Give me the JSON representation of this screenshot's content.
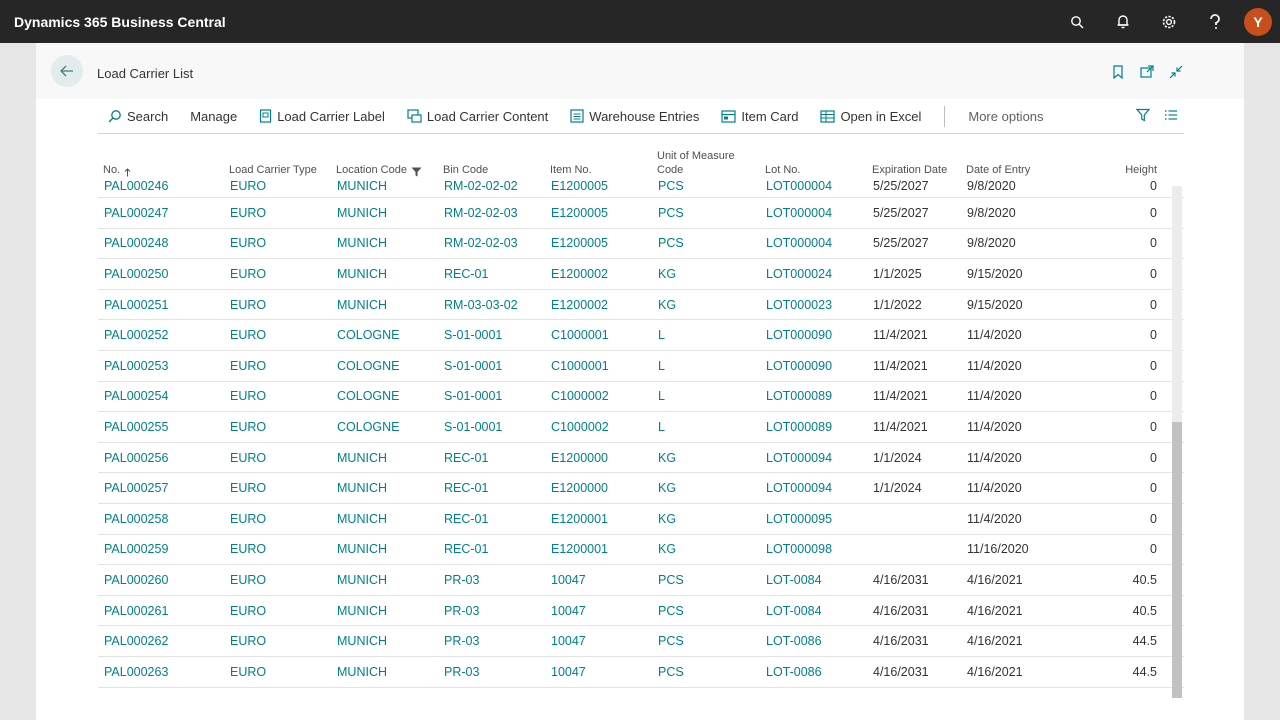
{
  "app": {
    "title": "Dynamics 365 Business Central",
    "user_initial": "Y"
  },
  "page": {
    "title": "Load Carrier List"
  },
  "actions": [
    {
      "label": "Search",
      "icon": "search-icon"
    },
    {
      "label": "Manage",
      "icon": ""
    },
    {
      "label": "Load Carrier Label",
      "icon": "label-icon"
    },
    {
      "label": "Load Carrier Content",
      "icon": "content-icon"
    },
    {
      "label": "Warehouse Entries",
      "icon": "entries-icon"
    },
    {
      "label": "Item Card",
      "icon": "card-icon"
    },
    {
      "label": "Open in Excel",
      "icon": "excel-icon"
    }
  ],
  "more_options": "More options",
  "columns": {
    "no": "No.",
    "type": "Load Carrier Type",
    "location": "Location Code",
    "bin": "Bin Code",
    "item": "Item No.",
    "uom_line1": "Unit of Measure",
    "uom_line2": "Code",
    "lot": "Lot No.",
    "exp": "Expiration Date",
    "entry": "Date of Entry",
    "height": "Height"
  },
  "rows": [
    [
      "PAL000246",
      "EURO",
      "MUNICH",
      "RM-02-02-02",
      "E1200005",
      "PCS",
      "LOT000004",
      "5/25/2027",
      "9/8/2020",
      "0"
    ],
    [
      "PAL000247",
      "EURO",
      "MUNICH",
      "RM-02-02-03",
      "E1200005",
      "PCS",
      "LOT000004",
      "5/25/2027",
      "9/8/2020",
      "0"
    ],
    [
      "PAL000248",
      "EURO",
      "MUNICH",
      "RM-02-02-03",
      "E1200005",
      "PCS",
      "LOT000004",
      "5/25/2027",
      "9/8/2020",
      "0"
    ],
    [
      "PAL000250",
      "EURO",
      "MUNICH",
      "REC-01",
      "E1200002",
      "KG",
      "LOT000024",
      "1/1/2025",
      "9/15/2020",
      "0"
    ],
    [
      "PAL000251",
      "EURO",
      "MUNICH",
      "RM-03-03-02",
      "E1200002",
      "KG",
      "LOT000023",
      "1/1/2022",
      "9/15/2020",
      "0"
    ],
    [
      "PAL000252",
      "EURO",
      "COLOGNE",
      "S-01-0001",
      "C1000001",
      "L",
      "LOT000090",
      "11/4/2021",
      "11/4/2020",
      "0"
    ],
    [
      "PAL000253",
      "EURO",
      "COLOGNE",
      "S-01-0001",
      "C1000001",
      "L",
      "LOT000090",
      "11/4/2021",
      "11/4/2020",
      "0"
    ],
    [
      "PAL000254",
      "EURO",
      "COLOGNE",
      "S-01-0001",
      "C1000002",
      "L",
      "LOT000089",
      "11/4/2021",
      "11/4/2020",
      "0"
    ],
    [
      "PAL000255",
      "EURO",
      "COLOGNE",
      "S-01-0001",
      "C1000002",
      "L",
      "LOT000089",
      "11/4/2021",
      "11/4/2020",
      "0"
    ],
    [
      "PAL000256",
      "EURO",
      "MUNICH",
      "REC-01",
      "E1200000",
      "KG",
      "LOT000094",
      "1/1/2024",
      "11/4/2020",
      "0"
    ],
    [
      "PAL000257",
      "EURO",
      "MUNICH",
      "REC-01",
      "E1200000",
      "KG",
      "LOT000094",
      "1/1/2024",
      "11/4/2020",
      "0"
    ],
    [
      "PAL000258",
      "EURO",
      "MUNICH",
      "REC-01",
      "E1200001",
      "KG",
      "LOT000095",
      "",
      "11/4/2020",
      "0"
    ],
    [
      "PAL000259",
      "EURO",
      "MUNICH",
      "REC-01",
      "E1200001",
      "KG",
      "LOT000098",
      "",
      "11/16/2020",
      "0"
    ],
    [
      "PAL000260",
      "EURO",
      "MUNICH",
      "PR-03",
      "10047",
      "PCS",
      "LOT-0084",
      "4/16/2031",
      "4/16/2021",
      "40.5"
    ],
    [
      "PAL000261",
      "EURO",
      "MUNICH",
      "PR-03",
      "10047",
      "PCS",
      "LOT-0084",
      "4/16/2031",
      "4/16/2021",
      "40.5"
    ],
    [
      "PAL000262",
      "EURO",
      "MUNICH",
      "PR-03",
      "10047",
      "PCS",
      "LOT-0086",
      "4/16/2031",
      "4/16/2021",
      "44.5"
    ],
    [
      "PAL000263",
      "EURO",
      "MUNICH",
      "PR-03",
      "10047",
      "PCS",
      "LOT-0086",
      "4/16/2031",
      "4/16/2021",
      "44.5"
    ]
  ],
  "colors": {
    "link": "#00808a",
    "topbar": "#262626",
    "avatar": "#c74f1c"
  }
}
